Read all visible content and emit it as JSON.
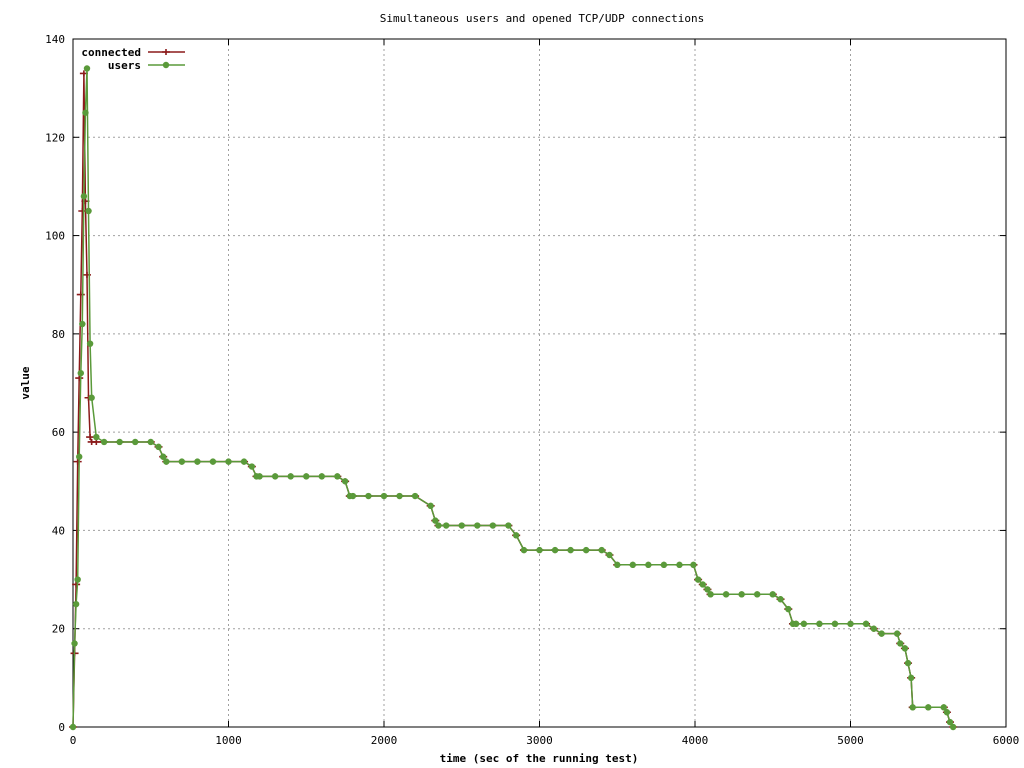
{
  "chart_data": {
    "type": "line",
    "title": "Simultaneous users and opened TCP/UDP connections",
    "xlabel": "time (sec of the running test)",
    "ylabel": "value",
    "xlim": [
      0,
      6000
    ],
    "ylim": [
      0,
      140
    ],
    "xticks": [
      0,
      1000,
      2000,
      3000,
      4000,
      5000,
      6000
    ],
    "yticks": [
      0,
      20,
      40,
      60,
      80,
      100,
      120,
      140
    ],
    "grid": true,
    "legend_position": "top-left",
    "series": [
      {
        "name": "connected",
        "color": "#8b1a1a",
        "marker": "plus",
        "x": [
          0,
          10,
          20,
          30,
          40,
          50,
          60,
          70,
          80,
          90,
          100,
          110,
          120,
          150,
          200,
          300,
          400,
          500,
          550,
          580,
          600,
          700,
          800,
          900,
          1000,
          1100,
          1150,
          1180,
          1200,
          1300,
          1400,
          1500,
          1600,
          1700,
          1750,
          1780,
          1800,
          1900,
          2000,
          2100,
          2200,
          2300,
          2330,
          2350,
          2400,
          2500,
          2600,
          2700,
          2800,
          2850,
          2900,
          3000,
          3100,
          3200,
          3300,
          3400,
          3450,
          3500,
          3600,
          3700,
          3800,
          3900,
          3990,
          4020,
          4050,
          4080,
          4100,
          4200,
          4300,
          4400,
          4500,
          4550,
          4600,
          4630,
          4650,
          4700,
          4800,
          4900,
          5000,
          5100,
          5150,
          5200,
          5300,
          5320,
          5350,
          5370,
          5390,
          5400,
          5500,
          5600,
          5620,
          5640,
          5660
        ],
        "y": [
          0,
          15,
          29,
          54,
          71,
          88,
          105,
          133,
          107,
          92,
          67,
          59,
          58,
          58,
          58,
          58,
          58,
          58,
          57,
          55,
          54,
          54,
          54,
          54,
          54,
          54,
          53,
          51,
          51,
          51,
          51,
          51,
          51,
          51,
          50,
          47,
          47,
          47,
          47,
          47,
          47,
          45,
          42,
          41,
          41,
          41,
          41,
          41,
          41,
          39,
          36,
          36,
          36,
          36,
          36,
          36,
          35,
          33,
          33,
          33,
          33,
          33,
          33,
          30,
          29,
          28,
          27,
          27,
          27,
          27,
          27,
          26,
          24,
          21,
          21,
          21,
          21,
          21,
          21,
          21,
          20,
          19,
          19,
          17,
          16,
          13,
          10,
          4,
          4,
          4,
          3,
          1,
          0
        ]
      },
      {
        "name": "users",
        "color": "#5a9a3a",
        "marker": "star",
        "x": [
          0,
          10,
          20,
          30,
          40,
          50,
          60,
          70,
          80,
          90,
          100,
          110,
          120,
          150,
          200,
          300,
          400,
          500,
          550,
          580,
          600,
          700,
          800,
          900,
          1000,
          1100,
          1150,
          1180,
          1200,
          1300,
          1400,
          1500,
          1600,
          1700,
          1750,
          1780,
          1800,
          1900,
          2000,
          2100,
          2200,
          2300,
          2330,
          2350,
          2400,
          2500,
          2600,
          2700,
          2800,
          2850,
          2900,
          3000,
          3100,
          3200,
          3300,
          3400,
          3450,
          3500,
          3600,
          3700,
          3800,
          3900,
          3990,
          4020,
          4050,
          4080,
          4100,
          4200,
          4300,
          4400,
          4500,
          4550,
          4600,
          4630,
          4650,
          4700,
          4800,
          4900,
          5000,
          5100,
          5150,
          5200,
          5300,
          5320,
          5350,
          5370,
          5390,
          5400,
          5500,
          5600,
          5620,
          5640,
          5660
        ],
        "y": [
          0,
          17,
          25,
          30,
          55,
          72,
          82,
          108,
          125,
          134,
          105,
          78,
          67,
          59,
          58,
          58,
          58,
          58,
          57,
          55,
          54,
          54,
          54,
          54,
          54,
          54,
          53,
          51,
          51,
          51,
          51,
          51,
          51,
          51,
          50,
          47,
          47,
          47,
          47,
          47,
          47,
          45,
          42,
          41,
          41,
          41,
          41,
          41,
          41,
          39,
          36,
          36,
          36,
          36,
          36,
          36,
          35,
          33,
          33,
          33,
          33,
          33,
          33,
          30,
          29,
          28,
          27,
          27,
          27,
          27,
          27,
          26,
          24,
          21,
          21,
          21,
          21,
          21,
          21,
          21,
          20,
          19,
          19,
          17,
          16,
          13,
          10,
          4,
          4,
          4,
          3,
          1,
          0
        ]
      }
    ]
  }
}
